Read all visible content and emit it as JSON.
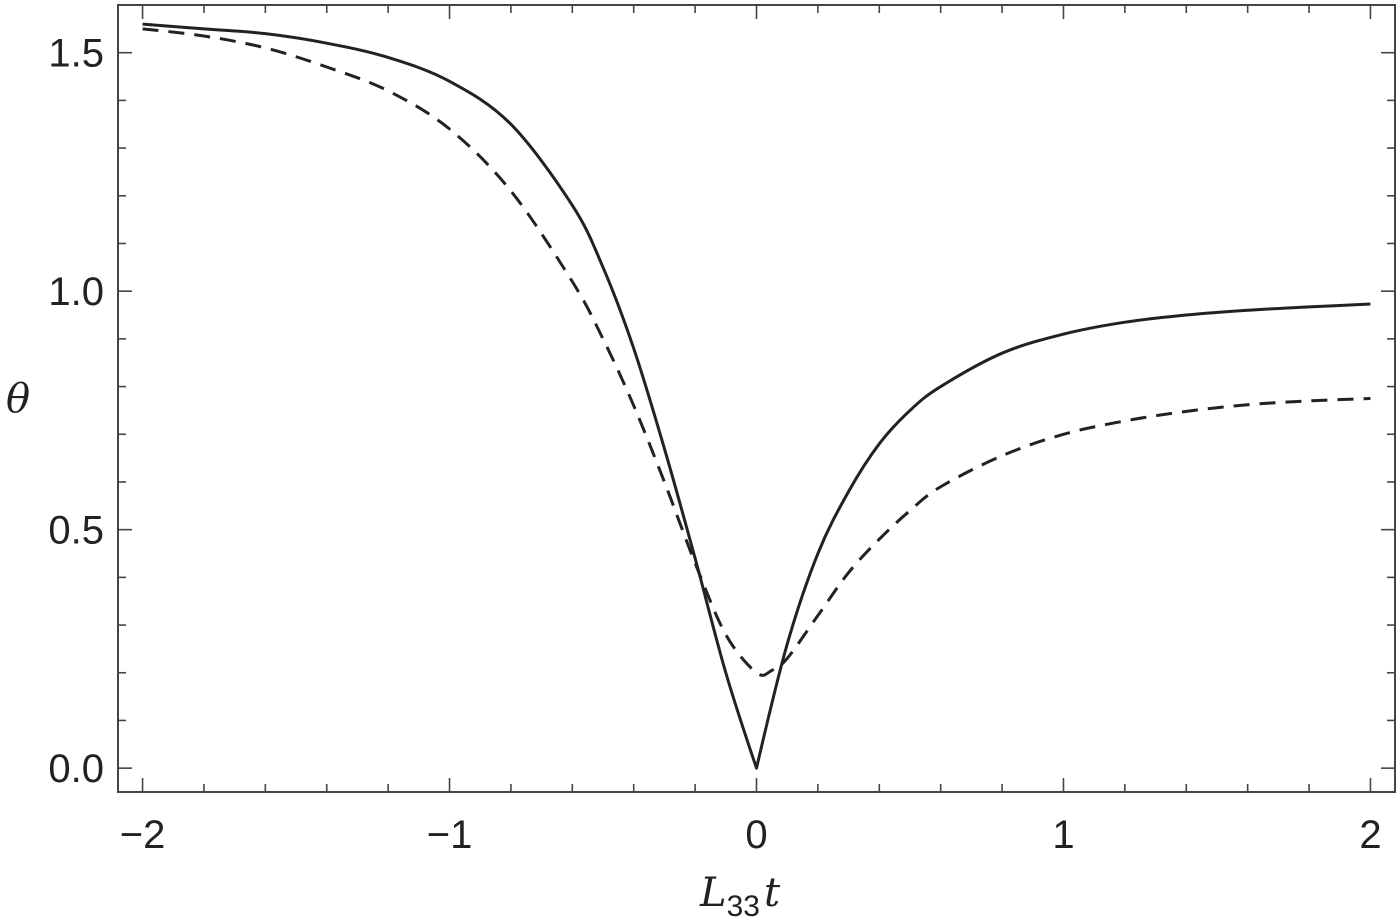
{
  "chart_data": {
    "type": "line",
    "title": "",
    "xlabel": "L33t",
    "xlabel_parts": {
      "main": "L",
      "sub": "33",
      "rest": "t"
    },
    "ylabel": "θ",
    "xlim": [
      -2.08,
      2.08
    ],
    "ylim": [
      -0.05,
      1.6
    ],
    "x_major_ticks": [
      -2,
      -1,
      0,
      1,
      2
    ],
    "x_tick_labels": [
      "−2",
      "−1",
      "0",
      "1",
      "2"
    ],
    "y_major_ticks": [
      0.0,
      0.5,
      1.0,
      1.5
    ],
    "y_tick_labels": [
      "0.0",
      "0.5",
      "1.0",
      "1.5"
    ],
    "grid": false,
    "legend": "none",
    "series": [
      {
        "style": "solid",
        "x": [
          -2.0,
          -1.8,
          -1.6,
          -1.4,
          -1.2,
          -1.0,
          -0.8,
          -0.6,
          -0.5,
          -0.4,
          -0.3,
          -0.2,
          -0.1,
          0.0,
          0.1,
          0.2,
          0.3,
          0.4,
          0.5,
          0.6,
          0.8,
          1.0,
          1.2,
          1.4,
          1.6,
          1.8,
          2.0
        ],
        "y": [
          1.56,
          1.55,
          1.54,
          1.52,
          1.49,
          1.44,
          1.35,
          1.18,
          1.05,
          0.88,
          0.67,
          0.44,
          0.2,
          0.0,
          0.26,
          0.45,
          0.58,
          0.68,
          0.75,
          0.8,
          0.87,
          0.91,
          0.935,
          0.95,
          0.96,
          0.967,
          0.973
        ]
      },
      {
        "style": "dashed",
        "x": [
          -2.0,
          -1.8,
          -1.6,
          -1.4,
          -1.2,
          -1.0,
          -0.8,
          -0.6,
          -0.5,
          -0.4,
          -0.3,
          -0.2,
          -0.1,
          0.0,
          0.05,
          0.1,
          0.2,
          0.3,
          0.4,
          0.5,
          0.6,
          0.8,
          1.0,
          1.2,
          1.4,
          1.6,
          1.8,
          2.0
        ],
        "y": [
          1.55,
          1.535,
          1.51,
          1.47,
          1.42,
          1.34,
          1.21,
          1.02,
          0.9,
          0.76,
          0.6,
          0.43,
          0.28,
          0.2,
          0.205,
          0.23,
          0.32,
          0.41,
          0.48,
          0.54,
          0.59,
          0.655,
          0.7,
          0.728,
          0.748,
          0.762,
          0.77,
          0.775
        ]
      }
    ]
  }
}
